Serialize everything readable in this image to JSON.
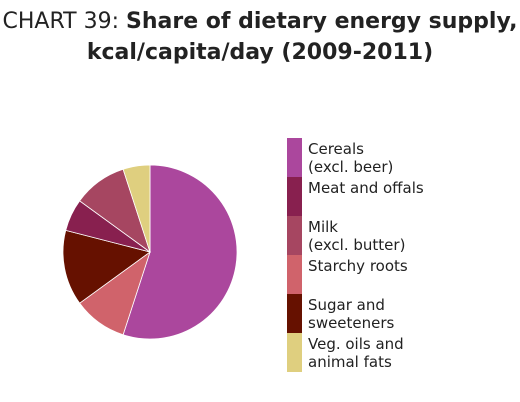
{
  "title": {
    "prefix": "CHART 39: ",
    "main_line1": "Share of dietary energy supply,",
    "main_line2": "kcal/capita/day (2009-2011)"
  },
  "chart_data": {
    "type": "pie",
    "categories": [
      "Cereals\n(excl. beer)",
      "Meat and offals",
      "Milk\n(excl. butter)",
      "Starchy roots",
      "Sugar and\nsweeteners",
      "Veg. oils and\nanimal fats"
    ],
    "values": [
      55,
      6,
      10,
      10,
      14,
      5
    ],
    "slice_order": [
      "Cereals",
      "Starchy roots",
      "Sugar and sweeteners",
      "Meat and offals",
      "Milk",
      "Veg. oils and animal fats"
    ],
    "colors": [
      "#ab479d",
      "#88204f",
      "#a64661",
      "#d0636b",
      "#661100",
      "#dfcf7f"
    ],
    "legend_position": "right"
  }
}
